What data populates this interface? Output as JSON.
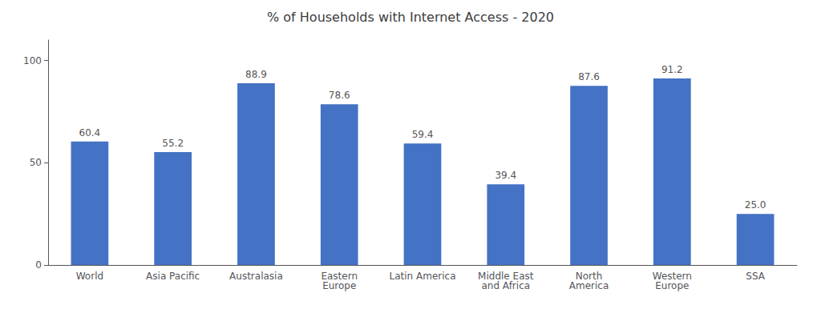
{
  "chart_data": {
    "type": "bar",
    "title": "% of Households with Internet Access - 2020",
    "categories": [
      "World",
      "Asia Pacific",
      "Australasia",
      "Eastern\nEurope",
      "Latin America",
      "Middle East\nand Africa",
      "North\nAmerica",
      "Western\nEurope",
      "SSA"
    ],
    "values": [
      60.4,
      55.2,
      88.9,
      78.6,
      59.4,
      39.4,
      87.6,
      91.2,
      25.0
    ],
    "value_labels": [
      "60.4",
      "55.2",
      "88.9",
      "78.6",
      "59.4",
      "39.4",
      "87.6",
      "91.2",
      "25.0"
    ],
    "color": "#4472C4",
    "ylim": [
      0,
      110
    ],
    "yticks": [
      0,
      50,
      100
    ],
    "grid": false,
    "data_labels": true
  }
}
